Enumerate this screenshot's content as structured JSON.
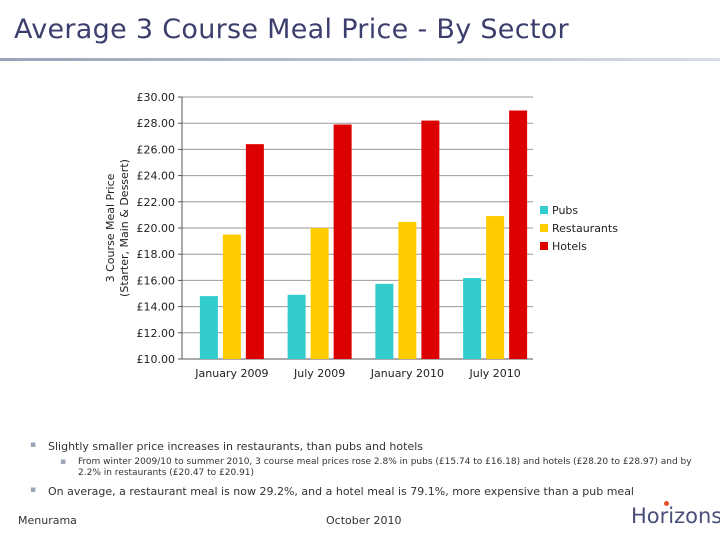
{
  "title": "Average 3 Course Meal Price - By Sector",
  "chart_data": {
    "type": "bar",
    "categories": [
      "January 2009",
      "July 2009",
      "January 2010",
      "July 2010"
    ],
    "series": [
      {
        "name": "Pubs",
        "color": "#33cccc",
        "values": [
          14.8,
          14.9,
          15.74,
          16.18
        ]
      },
      {
        "name": "Restaurants",
        "color": "#ffcc00",
        "values": [
          19.5,
          20.0,
          20.47,
          20.91
        ]
      },
      {
        "name": "Hotels",
        "color": "#dd0000",
        "values": [
          26.4,
          27.9,
          28.2,
          28.97
        ]
      }
    ],
    "ylabel_line1": "3 Course Meal Price",
    "ylabel_line2": "(Starter, Main & Dessert)",
    "ylim": [
      10,
      30
    ],
    "yticks": [
      "£10.00",
      "£12.00",
      "£14.00",
      "£16.00",
      "£18.00",
      "£20.00",
      "£22.00",
      "£24.00",
      "£26.00",
      "£28.00",
      "£30.00"
    ],
    "grid": true,
    "legend": "right"
  },
  "bullets": {
    "b1": "Slightly smaller price increases in restaurants, than pubs and hotels",
    "b1_sub": "From winter 2009/10 to summer 2010, 3 course meal prices rose 2.8% in pubs (£15.74 to £16.18) and hotels (£28.20 to £28.97) and by 2.2% in restaurants (£20.47 to £20.91)",
    "b2": "On average, a restaurant meal is now 29.2%, and a hotel meal is 79.1%, more expensive than a pub meal",
    "marker": "▪"
  },
  "footer": {
    "left": "Menurama",
    "middle": "October 2010",
    "logo": "Horizons"
  }
}
